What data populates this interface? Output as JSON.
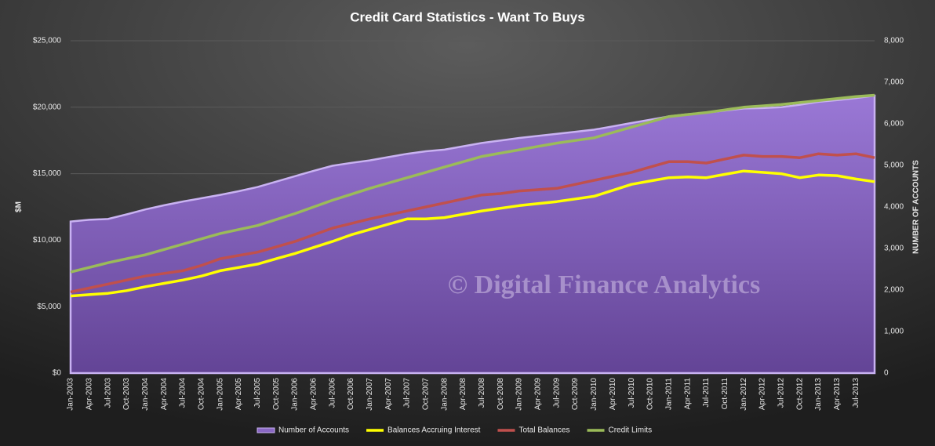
{
  "chart_data": {
    "type": "line",
    "title": "Credit Card Statistics - Want To Buys",
    "ylabel": "$M",
    "y2label": "NUMBER OF ACCOUNTS",
    "annotation": "© Digital Finance Analytics",
    "legend": "bottom",
    "categories": [
      "Jan-2003",
      "Apr-2003",
      "Jul-2003",
      "Oct-2003",
      "Jan-2004",
      "Apr-2004",
      "Jul-2004",
      "Oct-2004",
      "Jan-2005",
      "Apr-2005",
      "Jul-2005",
      "Oct-2005",
      "Jan-2006",
      "Apr-2006",
      "Jul-2006",
      "Oct-2006",
      "Jan-2007",
      "Apr-2007",
      "Jul-2007",
      "Oct-2007",
      "Jan-2008",
      "Apr-2008",
      "Jul-2008",
      "Oct-2008",
      "Jan-2009",
      "Apr-2009",
      "Jul-2009",
      "Oct-2009",
      "Jan-2010",
      "Apr-2010",
      "Jul-2010",
      "Oct-2010",
      "Jan-2011",
      "Apr-2011",
      "Jul-2011",
      "Oct-2011",
      "Jan-2012",
      "Apr-2012",
      "Jul-2012",
      "Oct-2012",
      "Jan-2013",
      "Apr-2013",
      "Jul-2013",
      null
    ],
    "ylim": [
      0,
      25000
    ],
    "yticks": [
      {
        "value": 0,
        "label": "$0"
      },
      {
        "value": 5000,
        "label": "$5,000"
      },
      {
        "value": 10000,
        "label": "$10,000"
      },
      {
        "value": 15000,
        "label": "$15,000"
      },
      {
        "value": 20000,
        "label": "$20,000"
      },
      {
        "value": 25000,
        "label": "$25,000"
      }
    ],
    "y2lim": [
      0,
      8000
    ],
    "y2ticks": [
      0,
      {
        "value": 1000,
        "label": "1,000"
      },
      {
        "value": 2000,
        "label": "2,000"
      },
      {
        "value": 3000,
        "label": "3,000"
      },
      {
        "value": 4000,
        "label": "4,000"
      },
      {
        "value": 5000,
        "label": "5,000"
      },
      {
        "value": 6000,
        "label": "6,000"
      },
      {
        "value": 7000,
        "label": "7,000"
      },
      {
        "value": 8000,
        "label": "8,000"
      }
    ],
    "grid": true,
    "series": [
      {
        "name": "Number of Accounts",
        "type": "area",
        "axis": "y2",
        "color": "#8a68c4",
        "values": [
          3650,
          3690,
          3710,
          3820,
          3940,
          4040,
          4130,
          4210,
          4290,
          4380,
          4480,
          4610,
          4740,
          4870,
          4990,
          5060,
          5120,
          5200,
          5280,
          5340,
          5380,
          5460,
          5540,
          5600,
          5660,
          5710,
          5760,
          5810,
          5860,
          5940,
          6020,
          6100,
          6180,
          6230,
          6270,
          6320,
          6370,
          6380,
          6400,
          6460,
          6530,
          6570,
          6620,
          6680
        ]
      },
      {
        "name": "Balances Accruing Interest",
        "color": "#ffff00",
        "values": [
          5800,
          5900,
          6000,
          6200,
          6500,
          6750,
          7000,
          7300,
          7700,
          7950,
          8200,
          8600,
          9000,
          9450,
          9900,
          10400,
          10800,
          11200,
          11600,
          11600,
          11700,
          11950,
          12200,
          12400,
          12600,
          12750,
          12900,
          13100,
          13300,
          13750,
          14200,
          14450,
          14700,
          14750,
          14700,
          14950,
          15200,
          15100,
          15000,
          14700,
          14900,
          14850,
          14600,
          14400
        ]
      },
      {
        "name": "Total Balances",
        "color": "#c0504d",
        "values": [
          6100,
          6400,
          6700,
          7000,
          7300,
          7500,
          7700,
          8100,
          8600,
          8850,
          9100,
          9500,
          9900,
          10400,
          10900,
          11250,
          11600,
          11900,
          12200,
          12500,
          12800,
          13100,
          13400,
          13500,
          13700,
          13800,
          13900,
          14200,
          14500,
          14800,
          15100,
          15500,
          15900,
          15900,
          15800,
          16100,
          16400,
          16300,
          16300,
          16200,
          16500,
          16400,
          16500,
          16200
        ]
      },
      {
        "name": "Credit Limits",
        "color": "#9bbb59",
        "values": [
          7600,
          7950,
          8300,
          8600,
          8900,
          9300,
          9700,
          10100,
          10500,
          10800,
          11100,
          11550,
          12000,
          12500,
          13000,
          13450,
          13900,
          14300,
          14700,
          15100,
          15500,
          15900,
          16300,
          16550,
          16800,
          17050,
          17300,
          17500,
          17700,
          18100,
          18500,
          18900,
          19300,
          19450,
          19600,
          19800,
          20000,
          20100,
          20200,
          20350,
          20500,
          20650,
          20800,
          20900
        ]
      }
    ]
  }
}
